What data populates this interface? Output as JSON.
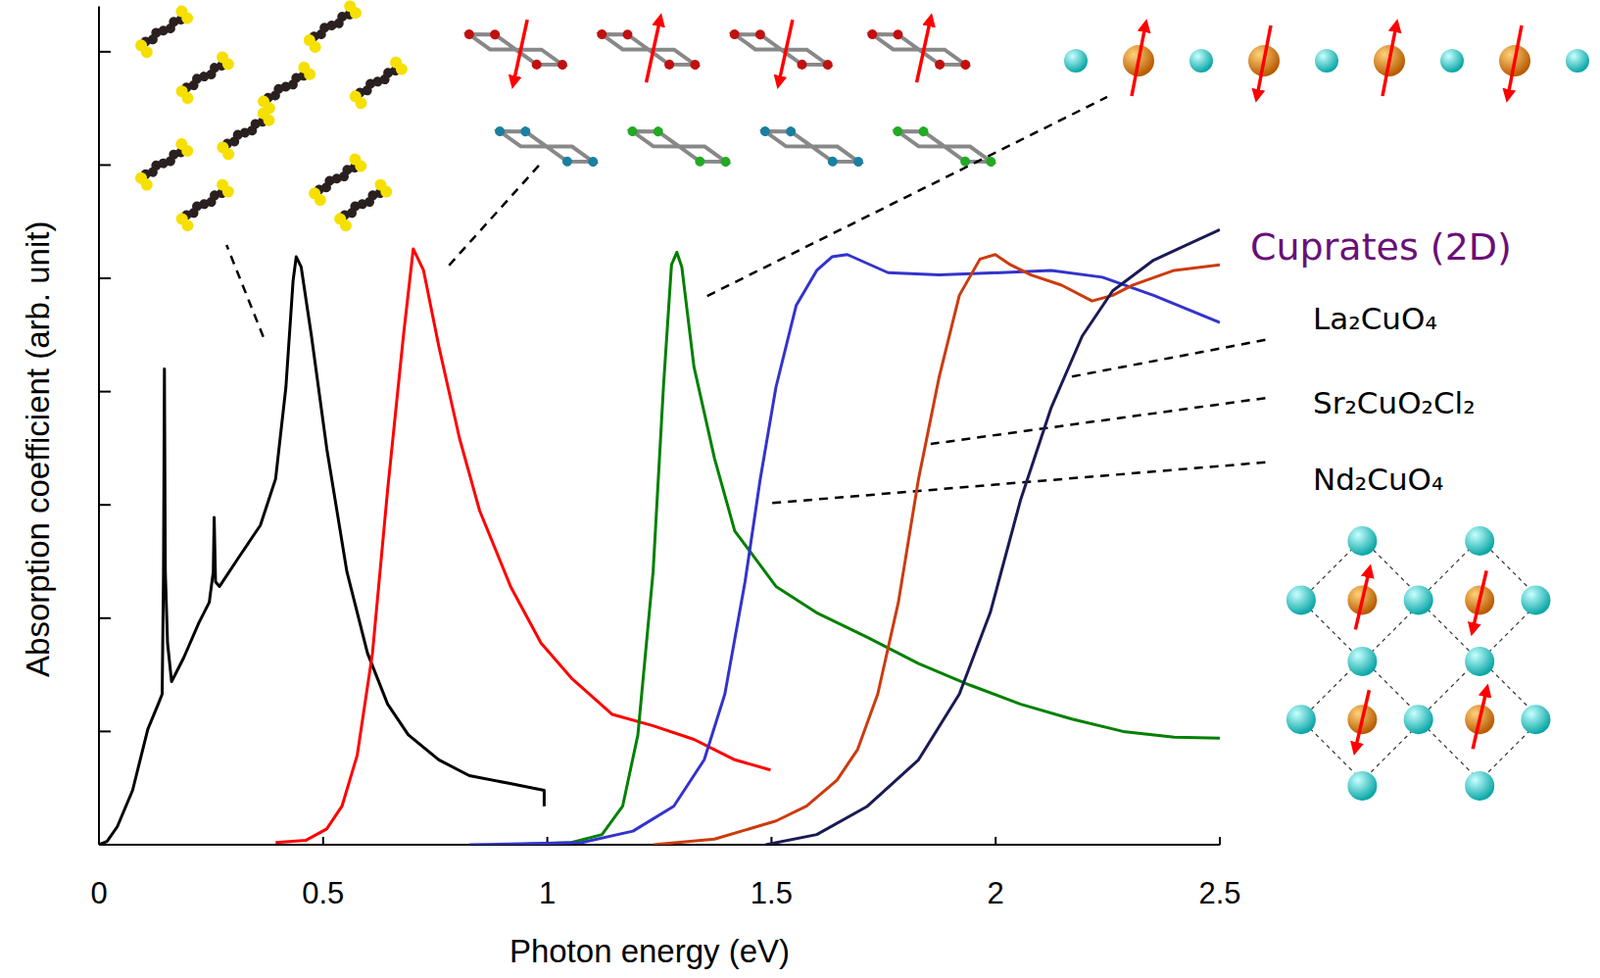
{
  "chart_data": {
    "type": "line",
    "x_label": "Photon energy (eV)",
    "y_label": "Absorption coefficient (arb. unit)",
    "xlim": [
      0,
      2.5
    ],
    "xticks": [
      0,
      0.5,
      1,
      1.5,
      2,
      2.5
    ],
    "ylim": [
      0,
      7.4
    ],
    "yticks": [
      0,
      1,
      2,
      3,
      4,
      5,
      6,
      7
    ],
    "tick_labels": "x",
    "grid": false,
    "annotations": [
      {
        "text": "Cuprates (2D)",
        "color": "#6a0f78"
      }
    ],
    "series": [
      {
        "color": "#000000",
        "x": [
          0,
          0.018,
          0.041,
          0.075,
          0.109,
          0.132,
          0.141,
          0.144,
          0.146,
          0.148,
          0.153,
          0.162,
          0.171,
          0.189,
          0.223,
          0.246,
          0.255,
          0.257,
          0.26,
          0.269,
          0.314,
          0.36,
          0.394,
          0.417,
          0.433,
          0.44,
          0.451,
          0.474,
          0.508,
          0.553,
          0.599,
          0.644,
          0.69,
          0.758,
          0.826,
          0.917,
          0.993,
          0.993
        ],
        "values": [
          0,
          0.03,
          0.16,
          0.48,
          1.02,
          1.24,
          1.33,
          2.41,
          4.2,
          2.41,
          1.78,
          1.44,
          1.51,
          1.65,
          1.96,
          2.14,
          2.41,
          2.89,
          2.32,
          2.28,
          2.55,
          2.82,
          3.23,
          4.04,
          4.98,
          5.19,
          5.1,
          4.49,
          3.5,
          2.41,
          1.69,
          1.24,
          0.97,
          0.75,
          0.61,
          0.54,
          0.48,
          0.34
        ]
      },
      {
        "color": "#ff0000",
        "x": [
          0.394,
          0.462,
          0.508,
          0.542,
          0.576,
          0.61,
          0.644,
          0.679,
          0.701,
          0.724,
          0.758,
          0.804,
          0.849,
          0.918,
          0.986,
          1.054,
          1.145,
          1.236,
          1.327,
          1.418,
          1.498
        ],
        "values": [
          0.02,
          0.04,
          0.14,
          0.34,
          0.79,
          1.69,
          3.14,
          4.49,
          5.26,
          5.07,
          4.4,
          3.59,
          2.95,
          2.28,
          1.78,
          1.47,
          1.15,
          1.05,
          0.93,
          0.75,
          0.66
        ]
      },
      {
        "color": "#008000",
        "x": [
          0.918,
          1.054,
          1.122,
          1.168,
          1.202,
          1.236,
          1.259,
          1.277,
          1.289,
          1.3,
          1.327,
          1.373,
          1.418,
          1.51,
          1.6,
          1.714,
          1.828,
          1.942,
          2.056,
          2.17,
          2.284,
          2.398,
          2.5
        ],
        "values": [
          0,
          0.02,
          0.09,
          0.34,
          0.97,
          2.41,
          4.04,
          5.12,
          5.23,
          5.1,
          4.22,
          3.41,
          2.77,
          2.28,
          2.05,
          1.83,
          1.6,
          1.41,
          1.24,
          1.11,
          1.0,
          0.95,
          0.94
        ]
      },
      {
        "name": "Nd₂CuO₄",
        "color": "#3333cc",
        "x": [
          0.826,
          1.077,
          1.191,
          1.282,
          1.35,
          1.396,
          1.441,
          1.475,
          1.51,
          1.555,
          1.601,
          1.635,
          1.669,
          1.76,
          1.874,
          2.01,
          2.124,
          2.238,
          2.352,
          2.5
        ],
        "values": [
          0,
          0.02,
          0.12,
          0.34,
          0.75,
          1.33,
          2.32,
          3.23,
          4.04,
          4.76,
          5.07,
          5.19,
          5.21,
          5.05,
          5.03,
          5.05,
          5.07,
          5.01,
          4.85,
          4.61
        ]
      },
      {
        "name": "Sr₂CuO₂Cl₂",
        "color": "#cc3b0e",
        "x": [
          1.236,
          1.373,
          1.51,
          1.578,
          1.646,
          1.692,
          1.737,
          1.783,
          1.828,
          1.874,
          1.919,
          1.965,
          1.999,
          2.033,
          2.079,
          2.147,
          2.215,
          2.261,
          2.306,
          2.398,
          2.5
        ],
        "values": [
          0,
          0.05,
          0.21,
          0.34,
          0.57,
          0.84,
          1.33,
          2.14,
          3.23,
          4.13,
          4.85,
          5.17,
          5.21,
          5.12,
          5.03,
          4.94,
          4.8,
          4.85,
          4.94,
          5.07,
          5.12
        ]
      },
      {
        "name": "La₂CuO₄",
        "color": "#1a1a55",
        "x": [
          1.487,
          1.601,
          1.714,
          1.828,
          1.919,
          1.988,
          2.056,
          2.124,
          2.193,
          2.261,
          2.352,
          2.5
        ],
        "values": [
          0,
          0.09,
          0.34,
          0.75,
          1.33,
          2.05,
          3.05,
          3.86,
          4.49,
          4.89,
          5.16,
          5.43
        ]
      }
    ]
  }
}
